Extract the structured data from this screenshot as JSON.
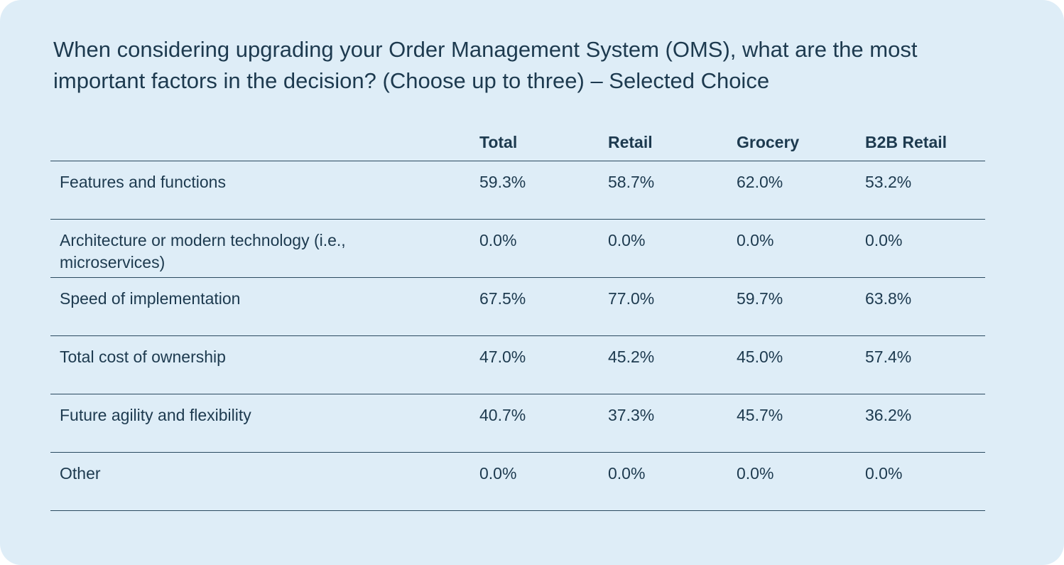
{
  "title": "When considering upgrading your Order Management System (OMS), what are the most important factors in the decision? (Choose up to three) – Selected Choice",
  "table": {
    "headers": [
      "",
      "Total",
      "Retail",
      "Grocery",
      "B2B Retail"
    ],
    "rows": [
      {
        "label": "Features and functions",
        "values": [
          "59.3%",
          "58.7%",
          "62.0%",
          "53.2%"
        ]
      },
      {
        "label": "Architecture or modern technology (i.e., microservices)",
        "values": [
          "0.0%",
          "0.0%",
          "0.0%",
          "0.0%"
        ]
      },
      {
        "label": "Speed of implementation",
        "values": [
          "67.5%",
          "77.0%",
          "59.7%",
          "63.8%"
        ]
      },
      {
        "label": "Total cost of ownership",
        "values": [
          "47.0%",
          "45.2%",
          "45.0%",
          "57.4%"
        ]
      },
      {
        "label": "Future agility and flexibility",
        "values": [
          "40.7%",
          "37.3%",
          "45.7%",
          "36.2%"
        ]
      },
      {
        "label": "Other",
        "values": [
          "0.0%",
          "0.0%",
          "0.0%",
          "0.0%"
        ]
      }
    ]
  },
  "colors": {
    "background": "#deedf7",
    "text": "#1d3a4f",
    "rule": "#2a4a60"
  }
}
